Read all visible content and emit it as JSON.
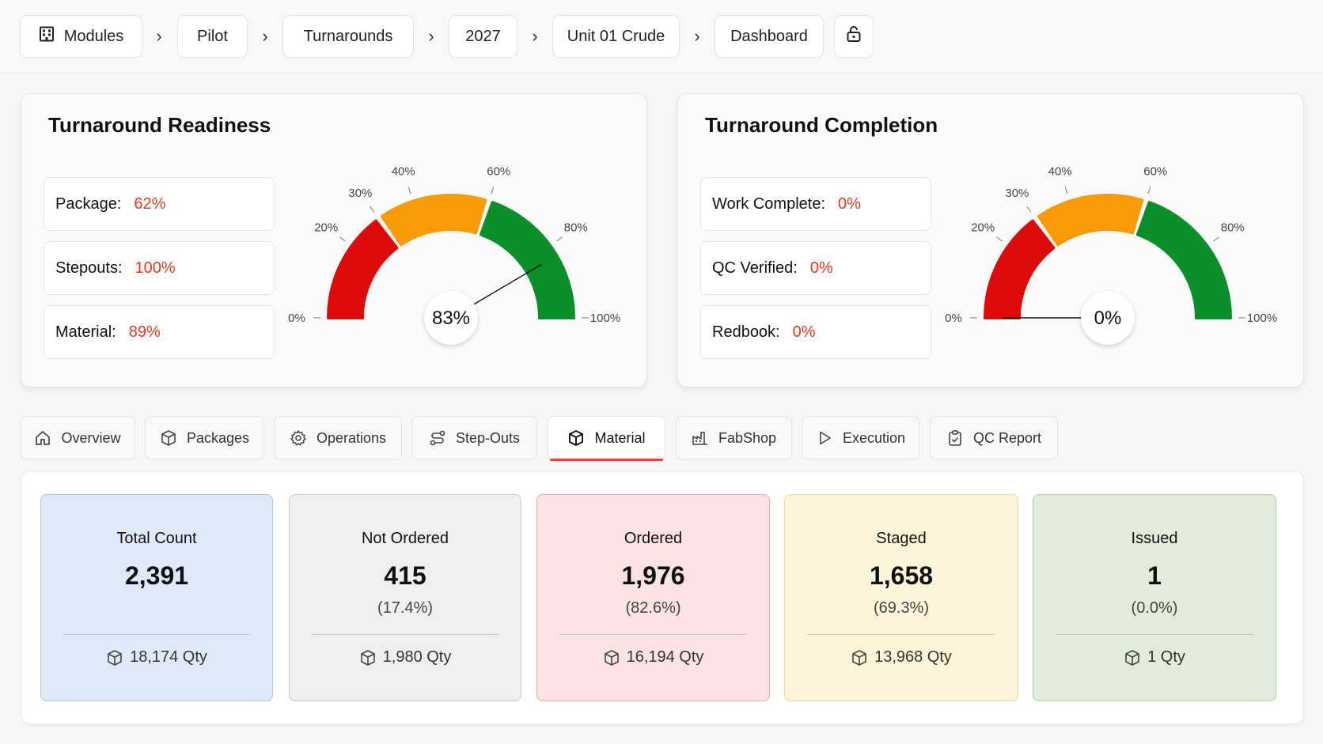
{
  "breadcrumb": {
    "items": [
      "Modules",
      "Pilot",
      "Turnarounds",
      "2027",
      "Unit 01 Crude",
      "Dashboard"
    ],
    "module_icon": "building-icon",
    "lock_icon": "lock-open-icon"
  },
  "readiness": {
    "title": "Turnaround Readiness",
    "metrics": [
      {
        "label": "Package:",
        "value": "62%"
      },
      {
        "label": "Stepouts:",
        "value": "100%"
      },
      {
        "label": "Material:",
        "value": "89%"
      }
    ],
    "gauge_value": 83,
    "gauge_text": "83%"
  },
  "completion": {
    "title": "Turnaround Completion",
    "metrics": [
      {
        "label": "Work Complete:",
        "value": "0%"
      },
      {
        "label": "QC Verified:",
        "value": "0%"
      },
      {
        "label": "Redbook:",
        "value": "0%"
      }
    ],
    "gauge_value": 0,
    "gauge_text": "0%"
  },
  "gauge_ticks": [
    {
      "pct": 0,
      "label": "0%"
    },
    {
      "pct": 20,
      "label": "20%"
    },
    {
      "pct": 30,
      "label": "30%"
    },
    {
      "pct": 40,
      "label": "40%"
    },
    {
      "pct": 60,
      "label": "60%"
    },
    {
      "pct": 80,
      "label": "80%"
    },
    {
      "pct": 100,
      "label": "100%"
    }
  ],
  "gauge_bands": [
    {
      "from": 0,
      "to": 30,
      "color": "#de0b0b"
    },
    {
      "from": 30,
      "to": 60,
      "color": "#f99a07"
    },
    {
      "from": 60,
      "to": 100,
      "color": "#0b8f2b"
    }
  ],
  "tabs": [
    {
      "label": "Overview",
      "icon": "home-icon"
    },
    {
      "label": "Packages",
      "icon": "package-icon"
    },
    {
      "label": "Operations",
      "icon": "gear-icon"
    },
    {
      "label": "Step-Outs",
      "icon": "route-icon"
    },
    {
      "label": "Material",
      "icon": "box-icon",
      "active": true
    },
    {
      "label": "FabShop",
      "icon": "factory-icon"
    },
    {
      "label": "Execution",
      "icon": "play-icon"
    },
    {
      "label": "QC Report",
      "icon": "clipboard-check-icon"
    }
  ],
  "stats": [
    {
      "label": "Total Count",
      "value": "2,391",
      "pct": "",
      "qty": "18,174 Qty",
      "bg": "#dfe9fa",
      "border": "#a9c4ec"
    },
    {
      "label": "Not Ordered",
      "value": "415",
      "pct": "(17.4%)",
      "qty": "1,980 Qty",
      "bg": "#efefef",
      "border": "#c9c9cb"
    },
    {
      "label": "Ordered",
      "value": "1,976",
      "pct": "(82.6%)",
      "qty": "16,194 Qty",
      "bg": "#fde2e3",
      "border": "#efa8ab"
    },
    {
      "label": "Staged",
      "value": "1,658",
      "pct": "(69.3%)",
      "qty": "13,968 Qty",
      "bg": "#fdf5d9",
      "border": "#ecd99a"
    },
    {
      "label": "Issued",
      "value": "1",
      "pct": "(0.0%)",
      "qty": "1 Qty",
      "bg": "#e2ecda",
      "border": "#b3cca2"
    }
  ]
}
